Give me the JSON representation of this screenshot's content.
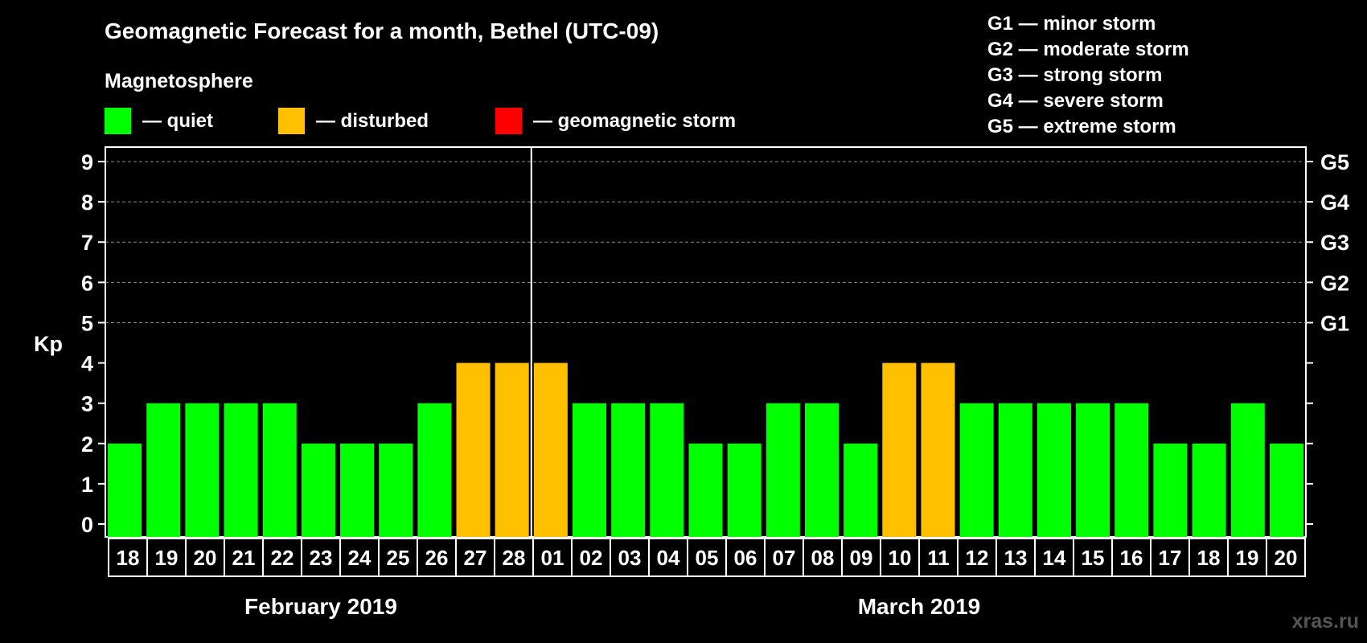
{
  "chart_data": {
    "type": "bar",
    "title": "Geomagnetic Forecast for a month, Bethel (UTC-09)",
    "ylabel": "Kp",
    "ylim": [
      0,
      9
    ],
    "yticks": [
      "0",
      "1",
      "2",
      "3",
      "4",
      "5",
      "6",
      "7",
      "8",
      "9"
    ],
    "storm_levels": [
      {
        "label": "G1",
        "kp": 5
      },
      {
        "label": "G2",
        "kp": 6
      },
      {
        "label": "G3",
        "kp": 7
      },
      {
        "label": "G4",
        "kp": 8
      },
      {
        "label": "G5",
        "kp": 9
      }
    ],
    "categories": [
      "18",
      "19",
      "20",
      "21",
      "22",
      "23",
      "24",
      "25",
      "26",
      "27",
      "28",
      "01",
      "02",
      "03",
      "04",
      "05",
      "06",
      "07",
      "08",
      "09",
      "10",
      "11",
      "12",
      "13",
      "14",
      "15",
      "16",
      "17",
      "18",
      "19",
      "20"
    ],
    "values": [
      2,
      3,
      3,
      3,
      3,
      2,
      2,
      2,
      3,
      4,
      4,
      4,
      3,
      3,
      3,
      2,
      2,
      3,
      3,
      2,
      4,
      4,
      3,
      3,
      3,
      3,
      3,
      2,
      2,
      3,
      2
    ],
    "months": [
      {
        "label": "February 2019",
        "start": 0,
        "end": 10
      },
      {
        "label": "March 2019",
        "start": 11,
        "end": 30
      }
    ],
    "month_divider_after_index": 10,
    "grid": true
  },
  "legend": {
    "heading": "Magnetosphere",
    "items": [
      {
        "label": "— quiet",
        "color": "#00ff00"
      },
      {
        "label": "— disturbed",
        "color": "#ffc000"
      },
      {
        "label": "— geomagnetic storm",
        "color": "#ff0000"
      }
    ]
  },
  "storm_legend": [
    "G1 — minor storm",
    "G2 — moderate storm",
    "G3 — strong storm",
    "G4 — severe storm",
    "G5 — extreme storm"
  ],
  "credit": "xras.ru",
  "colors": {
    "quiet": "#00ff00",
    "disturbed": "#ffc000",
    "storm": "#ff0000",
    "background": "#000000"
  }
}
